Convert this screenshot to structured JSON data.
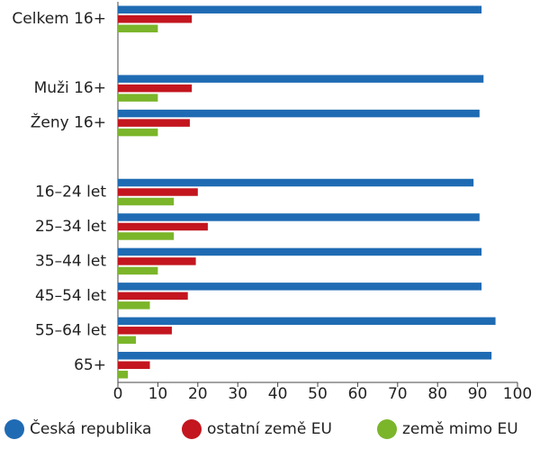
{
  "chart_data": {
    "type": "hbar",
    "categories": [
      "Celkem 16+",
      null,
      "Muži 16+",
      "Ženy 16+",
      null,
      "16–24 let",
      "25–34 let",
      "35–44 let",
      "45–54 let",
      "55–64 let",
      "65+"
    ],
    "series": [
      {
        "name": "Česká republika",
        "color": "#1f6bb3",
        "values": [
          91,
          null,
          91.5,
          90.5,
          null,
          89,
          90.5,
          91,
          91,
          94.5,
          93.5
        ]
      },
      {
        "name": "ostatní země EU",
        "color": "#c3161f",
        "values": [
          18.5,
          null,
          18.5,
          18,
          null,
          20,
          22.5,
          19.5,
          17.5,
          13.5,
          8
        ]
      },
      {
        "name": "země mimo EU",
        "color": "#7bb52a",
        "values": [
          10,
          null,
          10,
          10,
          null,
          14,
          14,
          10,
          8,
          4.5,
          2.5
        ]
      }
    ],
    "xlim": [
      0,
      100
    ],
    "xticks": [
      0,
      10,
      20,
      30,
      40,
      50,
      60,
      70,
      80,
      90,
      100
    ]
  }
}
